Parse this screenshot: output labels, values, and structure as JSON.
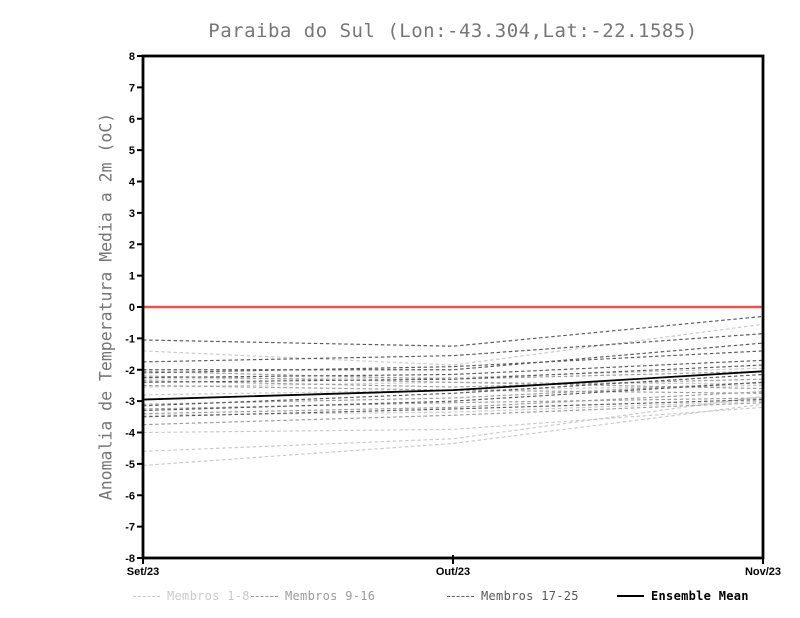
{
  "chart_data": {
    "type": "line",
    "title": "Paraiba do Sul (Lon:-43.304,Lat:-22.1585)",
    "ylabel": "Anomalia de Temperatura Media a 2m (oC)",
    "xlabel": "",
    "categories": [
      "Set/23",
      "Out/23",
      "Nov/23"
    ],
    "ylim": [
      -8,
      8
    ],
    "ytick_step": 1,
    "grid": false,
    "zero_line_value": 0,
    "legend_position": "bottom",
    "colors": {
      "light": "#c9c9c9",
      "medium": "#9b9b9b",
      "dark": "#585858",
      "mean": "#000000",
      "zero_line": "#f0524a",
      "axis": "#000000",
      "title_text": "#767676"
    },
    "legend": [
      {
        "label": "Membros 1-8",
        "group": "light"
      },
      {
        "label": "Membros 9-16",
        "group": "medium"
      },
      {
        "label": "Membros 17-25",
        "group": "dark"
      },
      {
        "label": "Ensemble Mean",
        "group": "mean"
      }
    ],
    "series": [
      {
        "group": "light",
        "values": [
          -1.4,
          -1.85,
          -0.55
        ]
      },
      {
        "group": "light",
        "values": [
          -2.3,
          -2.25,
          -1.95
        ]
      },
      {
        "group": "light",
        "values": [
          -2.55,
          -2.4,
          -2.45
        ]
      },
      {
        "group": "light",
        "values": [
          -2.8,
          -2.65,
          -2.5
        ]
      },
      {
        "group": "light",
        "values": [
          -3.45,
          -3.35,
          -3.0
        ]
      },
      {
        "group": "light",
        "values": [
          -4.0,
          -3.9,
          -3.2
        ]
      },
      {
        "group": "light",
        "values": [
          -4.6,
          -4.2,
          -2.85
        ]
      },
      {
        "group": "light",
        "values": [
          -5.05,
          -4.35,
          -3.1
        ]
      },
      {
        "group": "medium",
        "values": [
          -2.05,
          -2.3,
          -2.05
        ]
      },
      {
        "group": "medium",
        "values": [
          -2.2,
          -2.4,
          -2.6
        ]
      },
      {
        "group": "medium",
        "values": [
          -2.35,
          -2.55,
          -2.3
        ]
      },
      {
        "group": "medium",
        "values": [
          -2.5,
          -2.65,
          -2.75
        ]
      },
      {
        "group": "medium",
        "values": [
          -3.1,
          -2.9,
          -2.4
        ]
      },
      {
        "group": "medium",
        "values": [
          -3.25,
          -3.05,
          -2.9
        ]
      },
      {
        "group": "medium",
        "values": [
          -3.4,
          -3.2,
          -2.7
        ]
      },
      {
        "group": "medium",
        "values": [
          -3.75,
          -3.45,
          -3.05
        ]
      },
      {
        "group": "dark",
        "values": [
          -1.05,
          -1.25,
          -0.3
        ]
      },
      {
        "group": "dark",
        "values": [
          -1.75,
          -1.55,
          -0.85
        ]
      },
      {
        "group": "dark",
        "values": [
          -2.0,
          -2.0,
          -1.15
        ]
      },
      {
        "group": "dark",
        "values": [
          -2.1,
          -1.9,
          -1.4
        ]
      },
      {
        "group": "dark",
        "values": [
          -2.25,
          -2.15,
          -1.7
        ]
      },
      {
        "group": "dark",
        "values": [
          -2.4,
          -2.3,
          -1.85
        ]
      },
      {
        "group": "dark",
        "values": [
          -3.15,
          -2.75,
          -2.15
        ]
      },
      {
        "group": "dark",
        "values": [
          -3.3,
          -3.0,
          -2.4
        ]
      },
      {
        "group": "dark",
        "values": [
          -3.5,
          -3.25,
          -2.95
        ]
      },
      {
        "group": "mean",
        "values": [
          -2.95,
          -2.65,
          -2.05
        ]
      }
    ]
  }
}
